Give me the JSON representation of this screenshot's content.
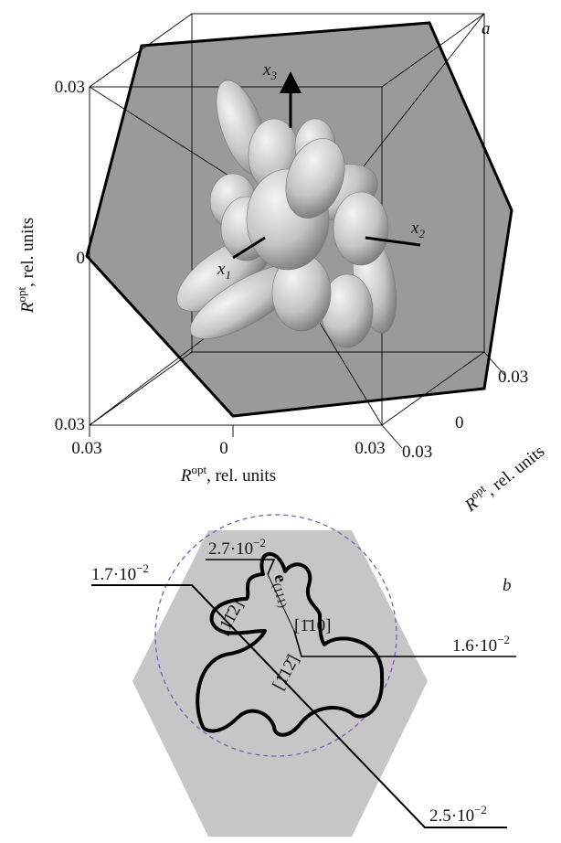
{
  "panel_a": {
    "label": "a",
    "axis_arrows": [
      {
        "symbol": "x",
        "sub": "1"
      },
      {
        "symbol": "x",
        "sub": "2"
      },
      {
        "symbol": "x",
        "sub": "3"
      }
    ],
    "left_axis": {
      "ticks": [
        "0.03",
        "0",
        "0.03"
      ],
      "label": {
        "symbol": "R",
        "sup": "opt",
        "text": ", rel. units"
      }
    },
    "bottom_axis": {
      "ticks": [
        "0.03",
        "0",
        "0.03"
      ],
      "label": {
        "symbol": "R",
        "sup": "opt",
        "text": ", rel. units"
      }
    },
    "depth_axis": {
      "ticks": [
        "0.03",
        "0",
        "0.03"
      ],
      "label": {
        "symbol": "R",
        "sup": "opt",
        "text": ", rel. units"
      }
    }
  },
  "panel_b": {
    "label": "b",
    "annotations": [
      {
        "base": "2.7·10",
        "exp": "−2"
      },
      {
        "base": "1.7·10",
        "exp": "−2"
      },
      {
        "base": "1.6·10",
        "exp": "−2"
      },
      {
        "base": "2.5·10",
        "exp": "−2"
      }
    ],
    "vector": {
      "symbol": "e",
      "sub": "(111)"
    },
    "directions": [
      "[1̄10]",
      "[11̄2]",
      "[1̄12̄]"
    ]
  }
}
